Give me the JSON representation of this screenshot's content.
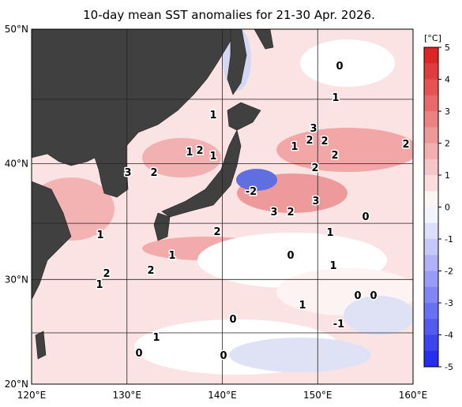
{
  "header": {
    "title": "10-day mean SST anomalies for 21-30 Apr. 2026."
  },
  "map": {
    "lat_labels": [
      "50°N",
      "40°N",
      "30°N",
      "20°N"
    ],
    "lon_labels": [
      "120°E",
      "130°E",
      "140°E",
      "150°E",
      "160°E"
    ],
    "contour_labels": [
      "1",
      "1",
      "2",
      "3",
      "2",
      "1",
      "0",
      "1",
      "3",
      "2",
      "1",
      "2",
      "2",
      "2",
      "2",
      "-2",
      "3",
      "3",
      "2",
      "0",
      "1",
      "2",
      "1",
      "1",
      "0",
      "2",
      "2",
      "1",
      "1",
      "0",
      "0",
      "1",
      "0",
      "-1",
      "1",
      "0",
      "0"
    ]
  },
  "colorbar": {
    "unit": "[°C]",
    "ticks": [
      5,
      4,
      3,
      2,
      1,
      0,
      -1,
      -2,
      -3,
      -4,
      -5
    ]
  }
}
